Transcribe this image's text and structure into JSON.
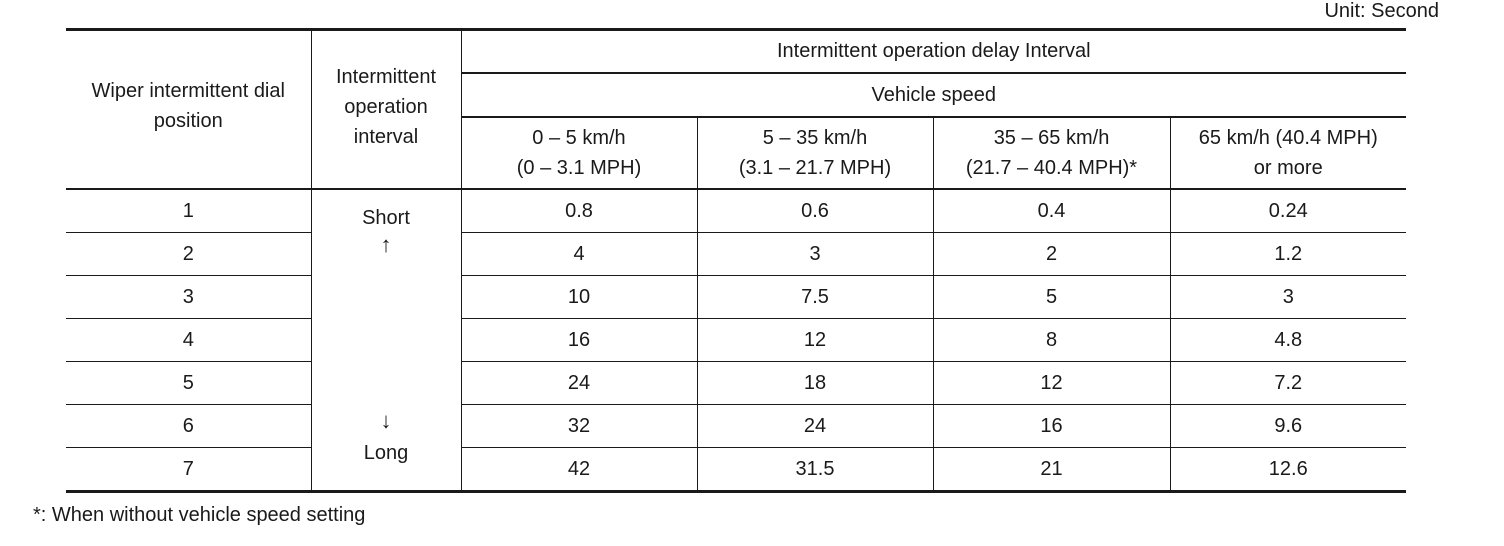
{
  "unit_note": "Unit: Second",
  "header": {
    "dial_position": "Wiper intermittent dial position",
    "operation_interval": "Intermittent operation interval",
    "delay_interval": "Intermittent operation delay Interval",
    "vehicle_speed": "Vehicle speed",
    "speed_columns": [
      {
        "line1": "0 – 5 km/h",
        "line2": "(0 – 3.1 MPH)"
      },
      {
        "line1": "5 – 35 km/h",
        "line2": "(3.1 – 21.7 MPH)"
      },
      {
        "line1": "35 – 65 km/h",
        "line2": "(21.7 – 40.4 MPH)*"
      },
      {
        "line1": "65 km/h (40.4 MPH)",
        "line2": "or more"
      }
    ]
  },
  "interval_scale": {
    "short": "Short",
    "up_arrow": "↑",
    "down_arrow": "↓",
    "long": "Long"
  },
  "rows": [
    {
      "position": "1",
      "values": [
        "0.8",
        "0.6",
        "0.4",
        "0.24"
      ]
    },
    {
      "position": "2",
      "values": [
        "4",
        "3",
        "2",
        "1.2"
      ]
    },
    {
      "position": "3",
      "values": [
        "10",
        "7.5",
        "5",
        "3"
      ]
    },
    {
      "position": "4",
      "values": [
        "16",
        "12",
        "8",
        "4.8"
      ]
    },
    {
      "position": "5",
      "values": [
        "24",
        "18",
        "12",
        "7.2"
      ]
    },
    {
      "position": "6",
      "values": [
        "32",
        "24",
        "16",
        "9.6"
      ]
    },
    {
      "position": "7",
      "values": [
        "42",
        "31.5",
        "21",
        "12.6"
      ]
    }
  ],
  "footnote": "*: When without vehicle speed setting"
}
